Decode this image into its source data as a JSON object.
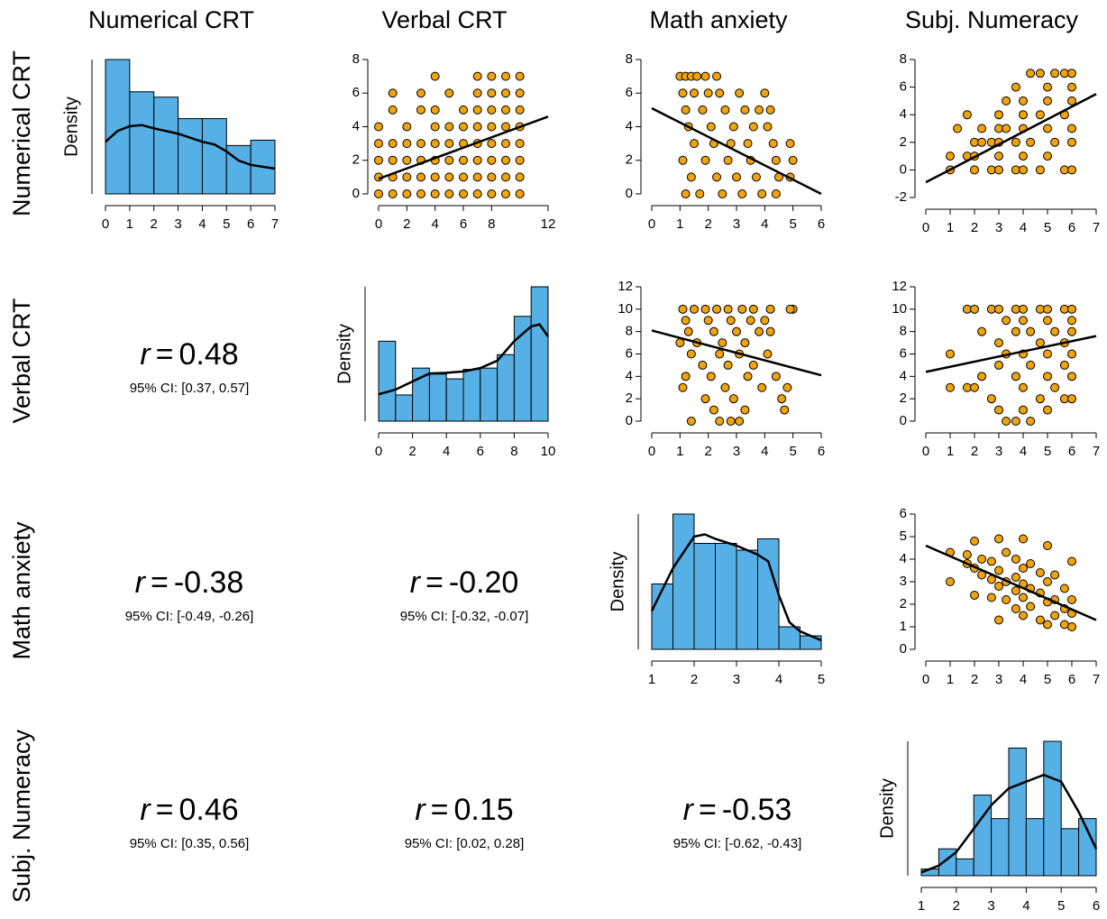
{
  "variables": [
    "Numerical CRT",
    "Verbal CRT",
    "Math anxiety",
    "Subj. Numeracy"
  ],
  "chart_data": [
    {
      "type": "histogram",
      "ylabel": "Density",
      "color": "#56b0e6",
      "line_color": "#000000",
      "bins": [
        0,
        1,
        2,
        3,
        4,
        5,
        6,
        7
      ],
      "values": [
        0.25,
        0.19,
        0.18,
        0.14,
        0.14,
        0.09,
        0.1
      ],
      "density": {
        "x": [
          0,
          0.5,
          1,
          1.5,
          2,
          3,
          4,
          4.5,
          5,
          5.5,
          6,
          7
        ],
        "y": [
          0.097,
          0.117,
          0.126,
          0.128,
          0.122,
          0.112,
          0.097,
          0.092,
          0.079,
          0.062,
          0.054,
          0.047
        ]
      },
      "xticks": [
        0,
        1,
        2,
        3,
        4,
        5,
        6,
        7
      ]
    },
    {
      "type": "scatter",
      "color": "#f0a30a",
      "line_color": "#000000",
      "x": [
        0,
        0,
        0,
        0,
        0,
        1,
        1,
        1,
        1,
        1,
        1,
        2,
        2,
        2,
        2,
        2,
        3,
        3,
        3,
        3,
        3,
        3,
        4,
        4,
        4,
        4,
        4,
        4,
        4,
        5,
        5,
        5,
        5,
        5,
        5,
        6,
        6,
        6,
        6,
        6,
        6,
        7,
        7,
        7,
        7,
        7,
        7,
        7,
        7,
        8,
        8,
        8,
        8,
        8,
        8,
        8,
        8,
        9,
        9,
        9,
        9,
        9,
        9,
        9,
        9,
        10,
        10,
        10,
        10,
        10,
        10,
        10,
        10
      ],
      "y": [
        0,
        1,
        2,
        3,
        4,
        0,
        1,
        2,
        3,
        5,
        6,
        0,
        1,
        2,
        3,
        4,
        0,
        1,
        2,
        3,
        5,
        6,
        0,
        1,
        2,
        3,
        4,
        5,
        7,
        0,
        1,
        2,
        3,
        4,
        6,
        0,
        1,
        2,
        3,
        4,
        5,
        0,
        1,
        2,
        3,
        4,
        5,
        6,
        7,
        0,
        1,
        2,
        3,
        4,
        5,
        6,
        7,
        0,
        1,
        2,
        3,
        4,
        5,
        6,
        7,
        0,
        1,
        2,
        3,
        4,
        5,
        6,
        7
      ],
      "fit": {
        "x": [
          0,
          12
        ],
        "y": [
          0.9,
          4.6
        ]
      },
      "xlim": [
        0,
        12
      ],
      "ylim": [
        0,
        8
      ],
      "xticks": [
        0,
        2,
        4,
        6,
        8,
        12
      ],
      "yticks": [
        0,
        2,
        4,
        6,
        8
      ]
    },
    {
      "type": "scatter",
      "color": "#f0a30a",
      "line_color": "#000000",
      "x": [
        1.0,
        1.2,
        1.4,
        1.6,
        1.9,
        2.3,
        1.1,
        1.5,
        2.0,
        2.4,
        3.1,
        4.0,
        1.2,
        1.8,
        2.6,
        3.3,
        3.8,
        4.2,
        1.3,
        2.1,
        2.9,
        3.6,
        4.1,
        1.5,
        2.2,
        2.8,
        3.4,
        4.3,
        4.9,
        1.1,
        1.9,
        2.7,
        3.5,
        4.4,
        5.0,
        1.4,
        2.3,
        3.0,
        3.7,
        4.5,
        4.9,
        1.2,
        1.7,
        2.5,
        3.2,
        3.9,
        4.4
      ],
      "y": [
        7,
        7,
        7,
        7,
        7,
        7,
        6,
        6,
        6,
        6,
        6,
        6,
        5,
        5,
        5,
        5,
        5,
        5,
        4,
        4,
        4,
        4,
        4,
        3,
        3,
        3,
        3,
        3,
        3,
        2,
        2,
        2,
        2,
        2,
        2,
        1,
        1,
        1,
        1,
        1,
        1,
        0,
        0,
        0,
        0,
        0,
        0
      ],
      "fit": {
        "x": [
          0,
          6
        ],
        "y": [
          5.1,
          0
        ]
      },
      "xlim": [
        0,
        6
      ],
      "ylim": [
        0,
        8
      ],
      "xticks": [
        0,
        1,
        2,
        3,
        4,
        5,
        6
      ],
      "yticks": [
        0,
        2,
        4,
        6,
        8
      ]
    },
    {
      "type": "scatter",
      "color": "#f0a30a",
      "line_color": "#000000",
      "x": [
        1,
        1,
        1.3,
        1.7,
        1.7,
        2,
        2,
        2,
        2.3,
        2.3,
        2.7,
        2.7,
        3,
        3,
        3,
        3,
        3,
        3.3,
        3.3,
        3.7,
        3.7,
        3.7,
        4,
        4,
        4,
        4,
        4,
        4.3,
        4.3,
        4.7,
        4.7,
        4.7,
        5,
        5,
        5,
        5,
        5.3,
        5.3,
        5.7,
        5.7,
        5.7,
        6,
        6,
        6,
        6,
        6,
        6
      ],
      "y": [
        0,
        1,
        3,
        4,
        1,
        0,
        1,
        2,
        2,
        3,
        0,
        2,
        0,
        1,
        2,
        3,
        4,
        5,
        3,
        0,
        2,
        6,
        0,
        1,
        3,
        4,
        5,
        7,
        2,
        0,
        4,
        7,
        1,
        3,
        5,
        6,
        7,
        2,
        0,
        4,
        7,
        0,
        2,
        3,
        5,
        6,
        7
      ],
      "fit": {
        "x": [
          0,
          7
        ],
        "y": [
          -0.9,
          5.5
        ]
      },
      "xlim": [
        0,
        7
      ],
      "ylim": [
        -2,
        8
      ],
      "xticks": [
        0,
        1,
        2,
        3,
        4,
        5,
        6,
        7
      ],
      "yticks": [
        -2,
        0,
        2,
        4,
        6,
        8
      ]
    },
    {
      "type": "correlation",
      "symbol": "r",
      "relation": "=",
      "value": 0.48,
      "value_label": "0.48",
      "ci": [
        0.37,
        0.57
      ],
      "ci_label": "95% CI: [0.37, 0.57]"
    },
    {
      "type": "histogram",
      "ylabel": "Density",
      "color": "#56b0e6",
      "line_color": "#000000",
      "bins": [
        0,
        1,
        2,
        3,
        4,
        5,
        6,
        7,
        8,
        9,
        10
      ],
      "values": [
        0.119,
        0.039,
        0.079,
        0.07,
        0.063,
        0.077,
        0.079,
        0.099,
        0.156,
        0.2
      ],
      "density": {
        "x": [
          0,
          1,
          2,
          3,
          4,
          5,
          6,
          7,
          8,
          9,
          9.5,
          10
        ],
        "y": [
          0.04,
          0.047,
          0.059,
          0.071,
          0.072,
          0.074,
          0.079,
          0.09,
          0.119,
          0.141,
          0.144,
          0.126
        ]
      },
      "xticks": [
        0,
        2,
        4,
        6,
        8,
        10
      ]
    },
    {
      "type": "scatter",
      "color": "#f0a30a",
      "line_color": "#000000",
      "x": [
        1.1,
        1.5,
        1.9,
        2.3,
        2.7,
        3.2,
        3.6,
        4.2,
        5.0,
        4.9,
        1.2,
        2.0,
        2.8,
        3.5,
        4.0,
        1.3,
        2.2,
        3.0,
        3.8,
        4.2,
        1.0,
        1.6,
        2.5,
        3.3,
        1.4,
        2.4,
        3.1,
        4.1,
        1.8,
        2.7,
        3.6,
        1.2,
        2.1,
        3.4,
        4.4,
        1.1,
        2.6,
        3.9,
        4.8,
        1.9,
        2.9,
        4.6,
        2.2,
        3.3,
        4.7,
        1.4,
        2.4,
        2.8,
        3.1
      ],
      "y": [
        10,
        10,
        10,
        10,
        10,
        10,
        10,
        10,
        10,
        10,
        9,
        9,
        9,
        9,
        9,
        8,
        8,
        8,
        8,
        8,
        7,
        7,
        7,
        7,
        6,
        6,
        6,
        6,
        5,
        5,
        5,
        4,
        4,
        4,
        4,
        3,
        3,
        3,
        3,
        2,
        2,
        2,
        1,
        1,
        1,
        0,
        0,
        0,
        0
      ],
      "fit": {
        "x": [
          0,
          6
        ],
        "y": [
          8.1,
          4.1
        ]
      },
      "xlim": [
        0,
        6
      ],
      "ylim": [
        0,
        12
      ],
      "xticks": [
        0,
        1,
        2,
        3,
        4,
        5,
        6
      ],
      "yticks": [
        0,
        2,
        4,
        6,
        8,
        10,
        12
      ]
    },
    {
      "type": "scatter",
      "color": "#f0a30a",
      "line_color": "#000000",
      "x": [
        1,
        1,
        1.7,
        2,
        1.7,
        2,
        2.3,
        2.3,
        2.7,
        2.7,
        3,
        3,
        3,
        3,
        3.3,
        3.3,
        3.3,
        3.7,
        3.7,
        3.7,
        3.7,
        4,
        4,
        4,
        4,
        4,
        4.3,
        4.3,
        4.3,
        4.7,
        4.7,
        4.7,
        5,
        5,
        5,
        5,
        5,
        5.3,
        5.3,
        5.7,
        5.7,
        5.7,
        5.7,
        6,
        6,
        6,
        6,
        6,
        6
      ],
      "y": [
        6,
        3,
        10,
        10,
        3,
        3,
        8,
        4,
        10,
        2,
        10,
        7,
        5,
        1,
        9,
        6,
        0,
        10,
        8,
        4,
        0,
        10,
        9,
        6,
        3,
        1,
        8,
        5,
        0,
        10,
        7,
        2,
        10,
        9,
        6,
        4,
        1,
        8,
        3,
        10,
        7,
        5,
        2,
        10,
        9,
        8,
        6,
        4,
        2
      ],
      "fit": {
        "x": [
          0,
          7
        ],
        "y": [
          4.4,
          7.6
        ]
      },
      "xlim": [
        0,
        7
      ],
      "ylim": [
        0,
        12
      ],
      "xticks": [
        0,
        1,
        2,
        3,
        4,
        5,
        6,
        7
      ],
      "yticks": [
        0,
        2,
        4,
        6,
        8,
        10,
        12
      ]
    },
    {
      "type": "correlation",
      "symbol": "r",
      "relation": "=",
      "value": -0.38,
      "value_label": "-0.38",
      "ci": [
        -0.49,
        -0.26
      ],
      "ci_label": "95% CI: [-0.49, -0.26]"
    },
    {
      "type": "correlation",
      "symbol": "r",
      "relation": "=",
      "value": -0.2,
      "value_label": "-0.20",
      "ci": [
        -0.32,
        -0.07
      ],
      "ci_label": "95% CI: [-0.32, -0.07]"
    },
    {
      "type": "histogram",
      "ylabel": "Density",
      "color": "#56b0e6",
      "line_color": "#000000",
      "bins": [
        1,
        1.5,
        2,
        2.5,
        3,
        3.5,
        4,
        4.5,
        5
      ],
      "values": [
        0.29,
        0.6,
        0.47,
        0.47,
        0.44,
        0.49,
        0.1,
        0.06
      ],
      "density": {
        "x": [
          1,
          1.5,
          2,
          2.25,
          2.5,
          3,
          3.5,
          3.75,
          4,
          4.25,
          4.5,
          5
        ],
        "y": [
          0.17,
          0.36,
          0.5,
          0.51,
          0.49,
          0.46,
          0.42,
          0.39,
          0.24,
          0.12,
          0.08,
          0.04
        ]
      },
      "xticks": [
        1,
        2,
        3,
        4,
        5
      ]
    },
    {
      "type": "scatter",
      "color": "#f0a30a",
      "line_color": "#000000",
      "x": [
        1,
        1,
        1.7,
        1.7,
        2,
        2,
        2,
        2.3,
        2.3,
        2.7,
        2.7,
        2.7,
        3,
        3,
        3,
        3,
        3.3,
        3.3,
        3.3,
        3.7,
        3.7,
        3.7,
        3.7,
        4,
        4,
        4,
        4,
        4,
        4.3,
        4.3,
        4.3,
        4.7,
        4.7,
        4.7,
        5,
        5,
        5,
        5,
        5.3,
        5.3,
        5.3,
        5.7,
        5.7,
        5.7,
        6,
        6,
        6,
        6
      ],
      "y": [
        4.3,
        3,
        3.8,
        4.2,
        3.6,
        4.8,
        2.4,
        3.3,
        4,
        3.9,
        2.3,
        3.1,
        4.9,
        3.5,
        2.8,
        1.3,
        4.3,
        3,
        2.2,
        4,
        3.2,
        2.6,
        1.8,
        4.9,
        3.6,
        2.9,
        2.3,
        1.5,
        3.8,
        2.7,
        1.9,
        3.4,
        2.5,
        1.3,
        4.6,
        3,
        2.1,
        1.1,
        3.3,
        2.2,
        1.5,
        2.7,
        1.8,
        1.1,
        3.9,
        2.2,
        1.6,
        1
      ],
      "fit": {
        "x": [
          0,
          7
        ],
        "y": [
          4.6,
          1.3
        ]
      },
      "xlim": [
        0,
        7
      ],
      "ylim": [
        0,
        6
      ],
      "xticks": [
        0,
        1,
        2,
        3,
        4,
        5,
        6,
        7
      ],
      "yticks": [
        0,
        1,
        2,
        3,
        4,
        5,
        6
      ]
    },
    {
      "type": "correlation",
      "symbol": "r",
      "relation": "=",
      "value": 0.46,
      "value_label": "0.46",
      "ci": [
        0.35,
        0.56
      ],
      "ci_label": "95% CI: [0.35, 0.56]"
    },
    {
      "type": "correlation",
      "symbol": "r",
      "relation": "=",
      "value": 0.15,
      "value_label": "0.15",
      "ci": [
        0.02,
        0.28
      ],
      "ci_label": "95% CI: [0.02, 0.28]"
    },
    {
      "type": "correlation",
      "symbol": "r",
      "relation": "=",
      "value": -0.53,
      "value_label": "-0.53",
      "ci": [
        -0.62,
        -0.43
      ],
      "ci_label": "95% CI: [-0.62, -0.43]"
    },
    {
      "type": "histogram",
      "ylabel": "Density",
      "color": "#56b0e6",
      "line_color": "#000000",
      "bins": [
        1,
        1.5,
        2,
        2.5,
        3,
        3.5,
        4,
        4.5,
        5,
        5.5,
        6
      ],
      "values": [
        0.02,
        0.08,
        0.05,
        0.24,
        0.17,
        0.38,
        0.17,
        0.4,
        0.14,
        0.17
      ],
      "density": {
        "x": [
          1,
          1.5,
          2,
          2.5,
          3,
          3.5,
          4,
          4.5,
          5,
          5.5,
          6
        ],
        "y": [
          0.01,
          0.03,
          0.07,
          0.14,
          0.21,
          0.26,
          0.28,
          0.3,
          0.28,
          0.19,
          0.08
        ]
      },
      "xticks": [
        1,
        2,
        3,
        4,
        5,
        6
      ]
    }
  ]
}
